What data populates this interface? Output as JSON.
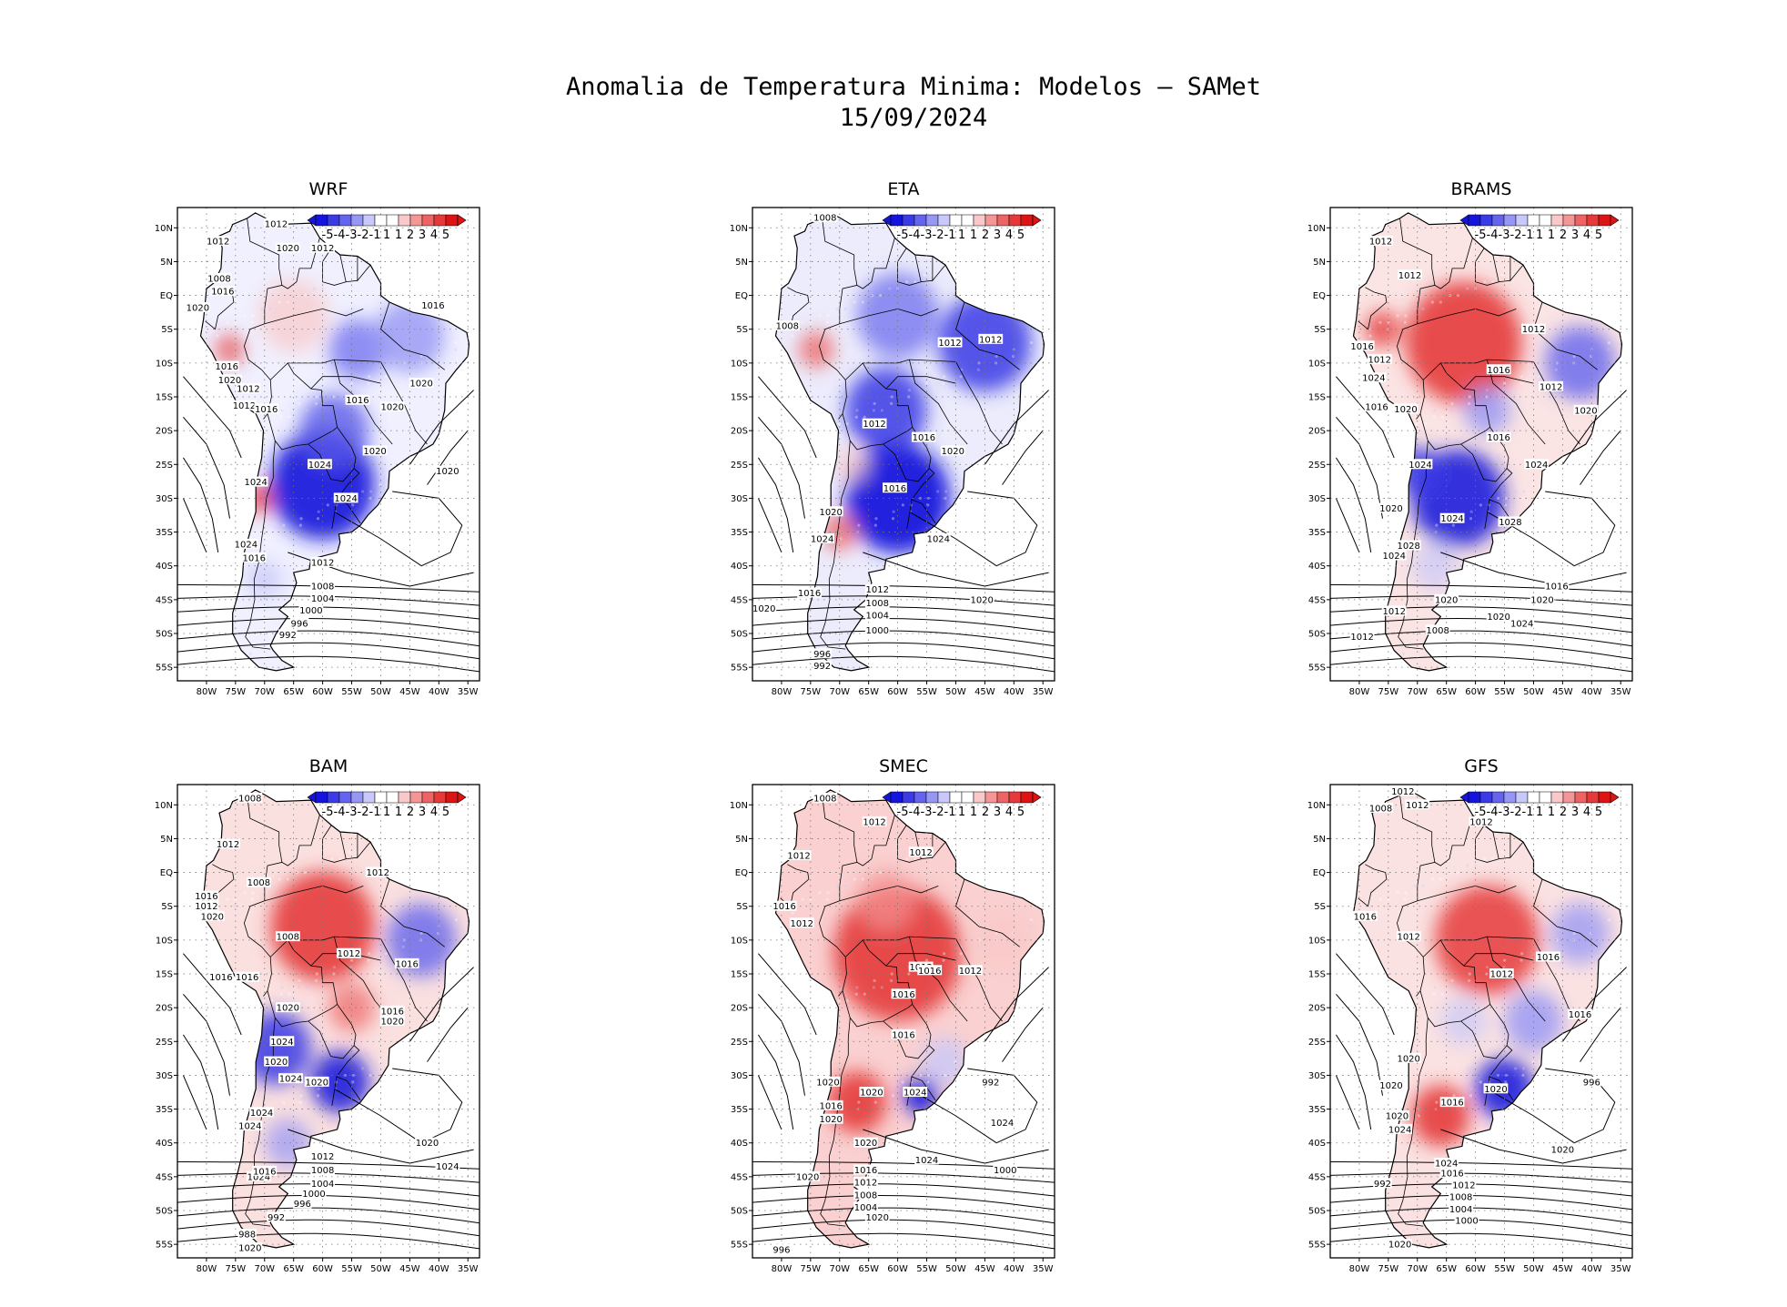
{
  "figure": {
    "title_line1": "Anomalia de Temperatura Minima: Modelos — SAMet",
    "title_line2": "15/09/2024"
  },
  "colorbar": {
    "labels": [
      "-5",
      "-4",
      "-3",
      "-2",
      "-1",
      "1",
      "1",
      "2",
      "3",
      "4",
      "5"
    ],
    "colors": [
      "#1414dc",
      "#3a3ae6",
      "#6464ee",
      "#9696f5",
      "#c8c8fa",
      "#ffffff",
      "#ffffff",
      "#fac8c8",
      "#f59696",
      "#ee6464",
      "#e63a3a",
      "#dc1414"
    ]
  },
  "axes": {
    "lat_labels": [
      "10N",
      "5N",
      "EQ",
      "5S",
      "10S",
      "15S",
      "20S",
      "25S",
      "30S",
      "35S",
      "40S",
      "45S",
      "50S",
      "55S"
    ],
    "lon_labels": [
      "80W",
      "75W",
      "70W",
      "65W",
      "60W",
      "55W",
      "50W",
      "45W",
      "40W",
      "35W"
    ]
  },
  "panels": [
    {
      "name": "WRF",
      "base": "#f0f0ff",
      "blobs": [
        {
          "lon": -60,
          "lat": -28,
          "r": 9,
          "c": "#1e1edc",
          "o": 0.95
        },
        {
          "lon": -58,
          "lat": -20,
          "r": 6,
          "c": "#5a5aea",
          "o": 0.8
        },
        {
          "lon": -54,
          "lat": -8,
          "r": 5,
          "c": "#6464ee",
          "o": 0.7
        },
        {
          "lon": -45,
          "lat": -6,
          "r": 6,
          "c": "#9696f5",
          "o": 0.8
        },
        {
          "lon": -65,
          "lat": -3,
          "r": 6,
          "c": "#fac8c8",
          "o": 0.7
        },
        {
          "lon": -71,
          "lat": -30,
          "r": 2.5,
          "c": "#e63a3a",
          "o": 0.8
        },
        {
          "lon": -76,
          "lat": -8,
          "r": 2.5,
          "c": "#e63a3a",
          "o": 0.7
        },
        {
          "lon": -70,
          "lat": -42,
          "r": 3,
          "c": "#c8c8fa",
          "o": 0.8
        }
      ],
      "labels": [
        "1012",
        "1012",
        "1008",
        "1016",
        "1020",
        "1012",
        "1020",
        "1016",
        "1016",
        "1020",
        "1012",
        "1012",
        "1016",
        "1016",
        "1020",
        "1020",
        "1020",
        "1024",
        "1024",
        "1020",
        "1024",
        "1024",
        "1016",
        "1012",
        "1008",
        "1004",
        "1000",
        "996",
        "992"
      ]
    },
    {
      "name": "ETA",
      "base": "#ececfc",
      "blobs": [
        {
          "lon": -60,
          "lat": -30,
          "r": 9,
          "c": "#1414dc",
          "o": 0.95
        },
        {
          "lon": -62,
          "lat": -17,
          "r": 7,
          "c": "#3a3ae6",
          "o": 0.85
        },
        {
          "lon": -45,
          "lat": -7,
          "r": 8,
          "c": "#3a3ae6",
          "o": 0.85
        },
        {
          "lon": -60,
          "lat": -3,
          "r": 7,
          "c": "#6464ee",
          "o": 0.7
        },
        {
          "lon": -74,
          "lat": -8,
          "r": 3,
          "c": "#ee6464",
          "o": 0.8
        },
        {
          "lon": -70,
          "lat": -35,
          "r": 3,
          "c": "#ee6464",
          "o": 0.8
        },
        {
          "lon": -68,
          "lat": -25,
          "r": 3,
          "c": "#fac8c8",
          "o": 0.7
        }
      ],
      "labels": [
        "1008",
        "1012",
        "1008",
        "1012",
        "1012",
        "1016",
        "1020",
        "1016",
        "1020",
        "1024",
        "1024",
        "1016",
        "1012",
        "1008",
        "1004",
        "1000",
        "1020",
        "996",
        "992",
        "1020"
      ]
    },
    {
      "name": "BRAMS",
      "base": "#fbe4e4",
      "blobs": [
        {
          "lon": -62,
          "lat": -7,
          "r": 10,
          "c": "#e63a3a",
          "o": 0.9
        },
        {
          "lon": -63,
          "lat": -30,
          "r": 8,
          "c": "#1e1edc",
          "o": 0.9
        },
        {
          "lon": -70,
          "lat": -26,
          "r": 4,
          "c": "#3a3ae6",
          "o": 0.85
        },
        {
          "lon": -42,
          "lat": -10,
          "r": 6,
          "c": "#6464ee",
          "o": 0.8
        },
        {
          "lon": -58,
          "lat": -17,
          "r": 4,
          "c": "#9696f5",
          "o": 0.8
        },
        {
          "lon": -76,
          "lat": -5,
          "r": 3,
          "c": "#e63a3a",
          "o": 0.8
        },
        {
          "lon": -67,
          "lat": -40,
          "r": 4,
          "c": "#c8c8fa",
          "o": 0.7
        }
      ],
      "labels": [
        "1012",
        "1012",
        "1016",
        "1012",
        "1012",
        "1016",
        "1024",
        "1012",
        "1016",
        "1020",
        "1020",
        "1016",
        "1024",
        "1024",
        "1020",
        "1024",
        "1028",
        "1028",
        "1024",
        "1016",
        "1020",
        "1020",
        "1012",
        "1008",
        "1012",
        "1024",
        "1020"
      ]
    },
    {
      "name": "BAM",
      "base": "#fbe0e0",
      "blobs": [
        {
          "lon": -60,
          "lat": -8,
          "r": 9,
          "c": "#e63a3a",
          "o": 0.9
        },
        {
          "lon": -43,
          "lat": -10,
          "r": 6,
          "c": "#6464ee",
          "o": 0.8
        },
        {
          "lon": -68,
          "lat": -26,
          "r": 6,
          "c": "#3a3ae6",
          "o": 0.85
        },
        {
          "lon": -57,
          "lat": -31,
          "r": 5,
          "c": "#1e1edc",
          "o": 0.9
        },
        {
          "lon": -55,
          "lat": -20,
          "r": 4,
          "c": "#ee6464",
          "o": 0.7
        },
        {
          "lon": -66,
          "lat": -40,
          "r": 4,
          "c": "#9696f5",
          "o": 0.7
        }
      ],
      "labels": [
        "1008",
        "1012",
        "1012",
        "1008",
        "1016",
        "1012",
        "1020",
        "1008",
        "1012",
        "1016",
        "1016",
        "1016",
        "1020",
        "1016",
        "1020",
        "1024",
        "1020",
        "1024",
        "1020",
        "1024",
        "1024",
        "1024",
        "1016",
        "1012",
        "1008",
        "1004",
        "1000",
        "996",
        "992",
        "988",
        "1020",
        "1020",
        "1024"
      ]
    },
    {
      "name": "SMEC",
      "base": "#fad0d0",
      "blobs": [
        {
          "lon": -60,
          "lat": -12,
          "r": 11,
          "c": "#e63a3a",
          "o": 0.9
        },
        {
          "lon": -67,
          "lat": -34,
          "r": 5,
          "c": "#e63a3a",
          "o": 0.9
        },
        {
          "lon": -56,
          "lat": -33,
          "r": 3,
          "c": "#1414dc",
          "o": 0.95
        },
        {
          "lon": -52,
          "lat": -28,
          "r": 4,
          "c": "#c8c8fa",
          "o": 0.8
        },
        {
          "lon": -42,
          "lat": -10,
          "r": 5,
          "c": "#fac8c8",
          "o": 0.8
        },
        {
          "lon": -62,
          "lat": -4,
          "r": 5,
          "c": "#f59696",
          "o": 0.7
        }
      ],
      "labels": [
        "1008",
        "1012",
        "1012",
        "1012",
        "1016",
        "1012",
        "1012",
        "1016",
        "1012",
        "1016",
        "1016",
        "1020",
        "1020",
        "1016",
        "1020",
        "1024",
        "1020",
        "1024",
        "1024",
        "1016",
        "1012",
        "1008",
        "1004",
        "1000",
        "1020",
        "996",
        "992",
        "1020",
        "1020"
      ]
    },
    {
      "name": "GFS",
      "base": "#fbe2e2",
      "blobs": [
        {
          "lon": -58,
          "lat": -10,
          "r": 9,
          "c": "#e63a3a",
          "o": 0.85
        },
        {
          "lon": -66,
          "lat": -36,
          "r": 5,
          "c": "#e63a3a",
          "o": 0.9
        },
        {
          "lon": -55,
          "lat": -32,
          "r": 5,
          "c": "#1e1edc",
          "o": 0.9
        },
        {
          "lon": -50,
          "lat": -22,
          "r": 5,
          "c": "#9696f5",
          "o": 0.8
        },
        {
          "lon": -42,
          "lat": -9,
          "r": 5,
          "c": "#9696f5",
          "o": 0.75
        },
        {
          "lon": -62,
          "lat": -22,
          "r": 4,
          "c": "#c8c8fa",
          "o": 0.7
        }
      ],
      "labels": [
        "1012",
        "1008",
        "1012",
        "1012",
        "1016",
        "1012",
        "1016",
        "1012",
        "1016",
        "1020",
        "1020",
        "1016",
        "1020",
        "1020",
        "1024",
        "1024",
        "1016",
        "1012",
        "1008",
        "1004",
        "1000",
        "1020",
        "996",
        "992",
        "1020"
      ]
    }
  ]
}
